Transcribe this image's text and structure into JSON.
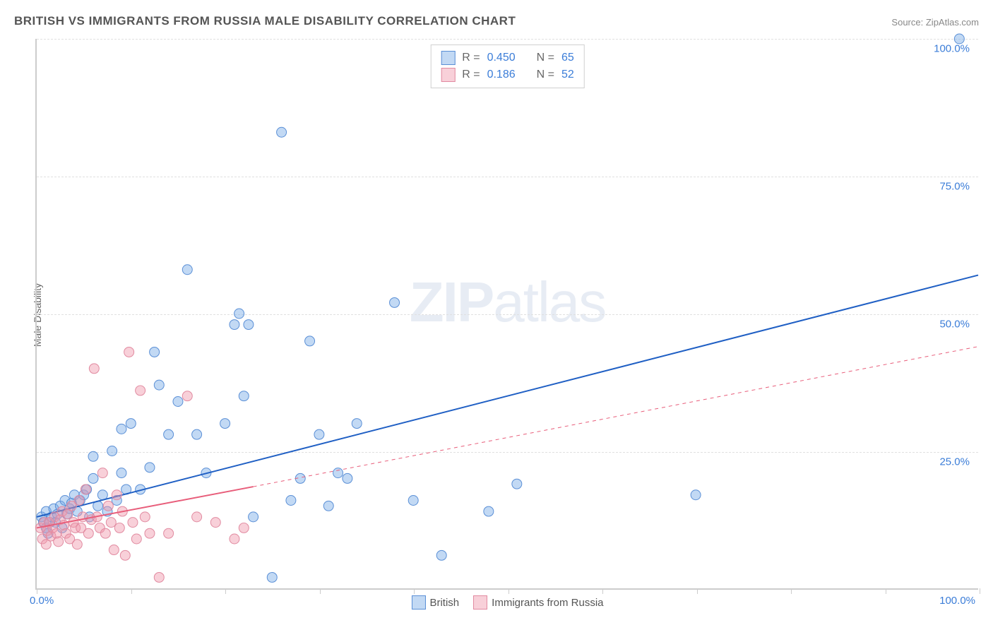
{
  "title": "BRITISH VS IMMIGRANTS FROM RUSSIA MALE DISABILITY CORRELATION CHART",
  "source_label": "Source:",
  "source_name": "ZipAtlas.com",
  "ylabel": "Male Disability",
  "watermark": {
    "bold": "ZIP",
    "rest": "atlas"
  },
  "chart": {
    "type": "scatter",
    "xlim": [
      0,
      100
    ],
    "ylim": [
      0,
      100
    ],
    "x_ticks": [
      0,
      10,
      20,
      30,
      40,
      50,
      60,
      70,
      80,
      90,
      100
    ],
    "x_tick_labels": {
      "0": "0.0%",
      "100": "100.0%"
    },
    "y_gridlines": [
      25,
      50,
      75,
      100
    ],
    "y_tick_labels": {
      "25": "25.0%",
      "50": "50.0%",
      "75": "75.0%",
      "100": "100.0%"
    },
    "tick_label_color": "#3b7dd8",
    "grid_color": "#e0e0e0",
    "background_color": "#ffffff",
    "axis_color": "#cccccc",
    "series": [
      {
        "name": "British",
        "color_fill": "rgba(120,170,230,0.45)",
        "color_stroke": "#5a8fd6",
        "marker_radius": 7,
        "trend": {
          "x1": 0,
          "y1": 13,
          "x2": 100,
          "y2": 57,
          "stroke": "#1f5fc4",
          "width": 2,
          "dash": "none"
        },
        "trend_extend": null,
        "R": "0.450",
        "N": "65",
        "points": [
          [
            0.5,
            13
          ],
          [
            0.7,
            12
          ],
          [
            1,
            11
          ],
          [
            1,
            14
          ],
          [
            1.2,
            10
          ],
          [
            1.4,
            12
          ],
          [
            1.6,
            13
          ],
          [
            1.8,
            14.5
          ],
          [
            2,
            12
          ],
          [
            2.2,
            13.5
          ],
          [
            2.5,
            15
          ],
          [
            2.7,
            11
          ],
          [
            3,
            16
          ],
          [
            3.2,
            13.5
          ],
          [
            3.5,
            14.5
          ],
          [
            3.7,
            15.5
          ],
          [
            4,
            17
          ],
          [
            4.3,
            14
          ],
          [
            4.6,
            16
          ],
          [
            5,
            17
          ],
          [
            5.3,
            18
          ],
          [
            5.6,
            13
          ],
          [
            6,
            20
          ],
          [
            6.5,
            15
          ],
          [
            7,
            17
          ],
          [
            7.5,
            14
          ],
          [
            8,
            25
          ],
          [
            8.5,
            16
          ],
          [
            9,
            29
          ],
          [
            9.5,
            18
          ],
          [
            10,
            30
          ],
          [
            11,
            18
          ],
          [
            12,
            22
          ],
          [
            12.5,
            43
          ],
          [
            13,
            37
          ],
          [
            14,
            28
          ],
          [
            15,
            34
          ],
          [
            16,
            58
          ],
          [
            17,
            28
          ],
          [
            18,
            21
          ],
          [
            20,
            30
          ],
          [
            21,
            48
          ],
          [
            21.5,
            50
          ],
          [
            22,
            35
          ],
          [
            22.5,
            48
          ],
          [
            23,
            13
          ],
          [
            25,
            2
          ],
          [
            26,
            83
          ],
          [
            27,
            16
          ],
          [
            28,
            20
          ],
          [
            29,
            45
          ],
          [
            30,
            28
          ],
          [
            31,
            15
          ],
          [
            32,
            21
          ],
          [
            33,
            20
          ],
          [
            34,
            30
          ],
          [
            38,
            52
          ],
          [
            40,
            16
          ],
          [
            43,
            6
          ],
          [
            48,
            14
          ],
          [
            51,
            19
          ],
          [
            70,
            17
          ],
          [
            98,
            100
          ],
          [
            6,
            24
          ],
          [
            9,
            21
          ]
        ]
      },
      {
        "name": "Immigrants from Russia",
        "color_fill": "rgba(240,150,170,0.45)",
        "color_stroke": "#e18aa0",
        "marker_radius": 7,
        "trend": {
          "x1": 0,
          "y1": 11,
          "x2": 23,
          "y2": 18.5,
          "stroke": "#e85d7a",
          "width": 2,
          "dash": "none"
        },
        "trend_extend": {
          "x1": 23,
          "y1": 18.5,
          "x2": 100,
          "y2": 44,
          "stroke": "#e85d7a",
          "width": 1,
          "dash": "5,5"
        },
        "R": "0.186",
        "N": "52",
        "points": [
          [
            0.4,
            11
          ],
          [
            0.6,
            9
          ],
          [
            0.8,
            12
          ],
          [
            1,
            8
          ],
          [
            1.1,
            10.5
          ],
          [
            1.3,
            12
          ],
          [
            1.5,
            9.5
          ],
          [
            1.7,
            11
          ],
          [
            1.9,
            13
          ],
          [
            2.1,
            10
          ],
          [
            2.3,
            8.5
          ],
          [
            2.5,
            12.5
          ],
          [
            2.7,
            14
          ],
          [
            2.9,
            11.5
          ],
          [
            3.1,
            10
          ],
          [
            3.3,
            13.5
          ],
          [
            3.5,
            9
          ],
          [
            3.7,
            15
          ],
          [
            3.9,
            12
          ],
          [
            4.1,
            11
          ],
          [
            4.3,
            8
          ],
          [
            4.5,
            16
          ],
          [
            4.7,
            11
          ],
          [
            4.9,
            13
          ],
          [
            5.2,
            18
          ],
          [
            5.5,
            10
          ],
          [
            5.8,
            12.5
          ],
          [
            6.1,
            40
          ],
          [
            6.4,
            13
          ],
          [
            6.7,
            11
          ],
          [
            7,
            21
          ],
          [
            7.3,
            10
          ],
          [
            7.6,
            15
          ],
          [
            7.9,
            12
          ],
          [
            8.2,
            7
          ],
          [
            8.5,
            17
          ],
          [
            8.8,
            11
          ],
          [
            9.1,
            14
          ],
          [
            9.4,
            6
          ],
          [
            9.8,
            43
          ],
          [
            10.2,
            12
          ],
          [
            10.6,
            9
          ],
          [
            11,
            36
          ],
          [
            11.5,
            13
          ],
          [
            12,
            10
          ],
          [
            13,
            2
          ],
          [
            14,
            10
          ],
          [
            16,
            35
          ],
          [
            17,
            13
          ],
          [
            19,
            12
          ],
          [
            21,
            9
          ],
          [
            22,
            11
          ]
        ]
      }
    ],
    "stats_legend": {
      "label_R": "R =",
      "label_N": "N =",
      "value_color": "#3b7dd8",
      "label_color": "#666666",
      "border_color": "#d0d0d0"
    },
    "bottom_legend_items": [
      "British",
      "Immigrants from Russia"
    ]
  }
}
